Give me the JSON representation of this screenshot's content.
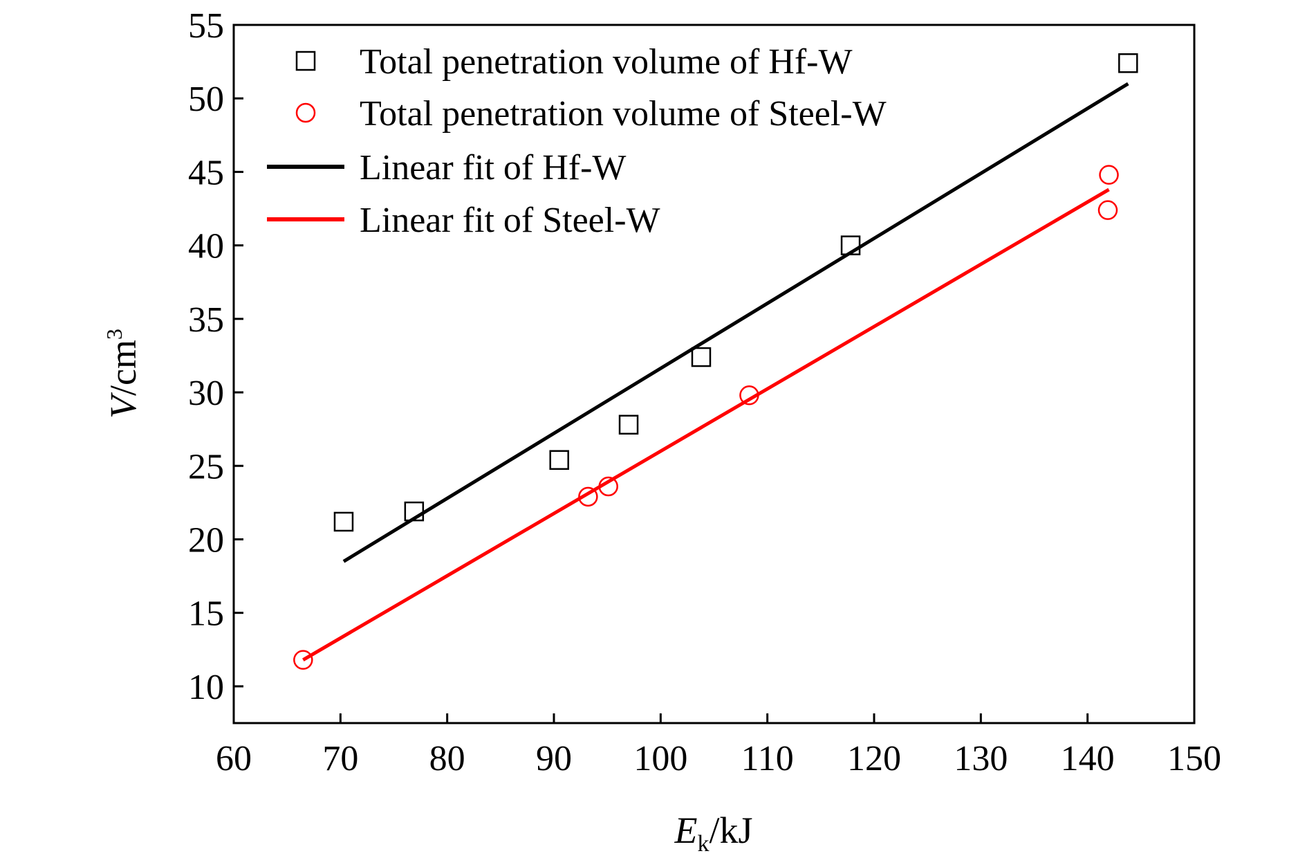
{
  "chart_data": {
    "type": "scatter",
    "xlabel": {
      "main": "E",
      "sub": "k",
      "unit": "/kJ"
    },
    "ylabel": {
      "main": "V",
      "unit": "/cm",
      "sup": "3"
    },
    "xlim": [
      60,
      150
    ],
    "ylim": [
      7.5,
      55
    ],
    "xticks": [
      "60",
      "70",
      "80",
      "90",
      "100",
      "110",
      "120",
      "130",
      "140",
      "150"
    ],
    "yticks": [
      "10",
      "15",
      "20",
      "25",
      "30",
      "35",
      "40",
      "45",
      "50",
      "55"
    ],
    "grid": false,
    "legend_position": "top-left",
    "series": [
      {
        "name": "Total penetration volume of Hf-W",
        "kind": "scatter",
        "marker": "square",
        "color": "#000000",
        "points": [
          [
            70.3,
            21.2
          ],
          [
            76.9,
            21.9
          ],
          [
            90.5,
            25.4
          ],
          [
            97.0,
            27.8
          ],
          [
            103.8,
            32.4
          ],
          [
            117.8,
            40.0
          ],
          [
            143.8,
            52.4
          ]
        ]
      },
      {
        "name": "Total penetration volume of Steel-W",
        "kind": "scatter",
        "marker": "circle",
        "color": "#ff0000",
        "points": [
          [
            66.5,
            11.8
          ],
          [
            93.2,
            22.9
          ],
          [
            95.1,
            23.6
          ],
          [
            108.3,
            29.8
          ],
          [
            142.0,
            44.8
          ],
          [
            141.9,
            42.4
          ]
        ]
      },
      {
        "name": "Linear fit of Hf-W",
        "kind": "line",
        "color": "#000000",
        "points": [
          [
            70.3,
            18.5
          ],
          [
            143.8,
            51.0
          ]
        ]
      },
      {
        "name": "Linear fit of Steel-W",
        "kind": "line",
        "color": "#ff0000",
        "points": [
          [
            66.5,
            11.8
          ],
          [
            142.0,
            43.8
          ]
        ]
      }
    ]
  }
}
